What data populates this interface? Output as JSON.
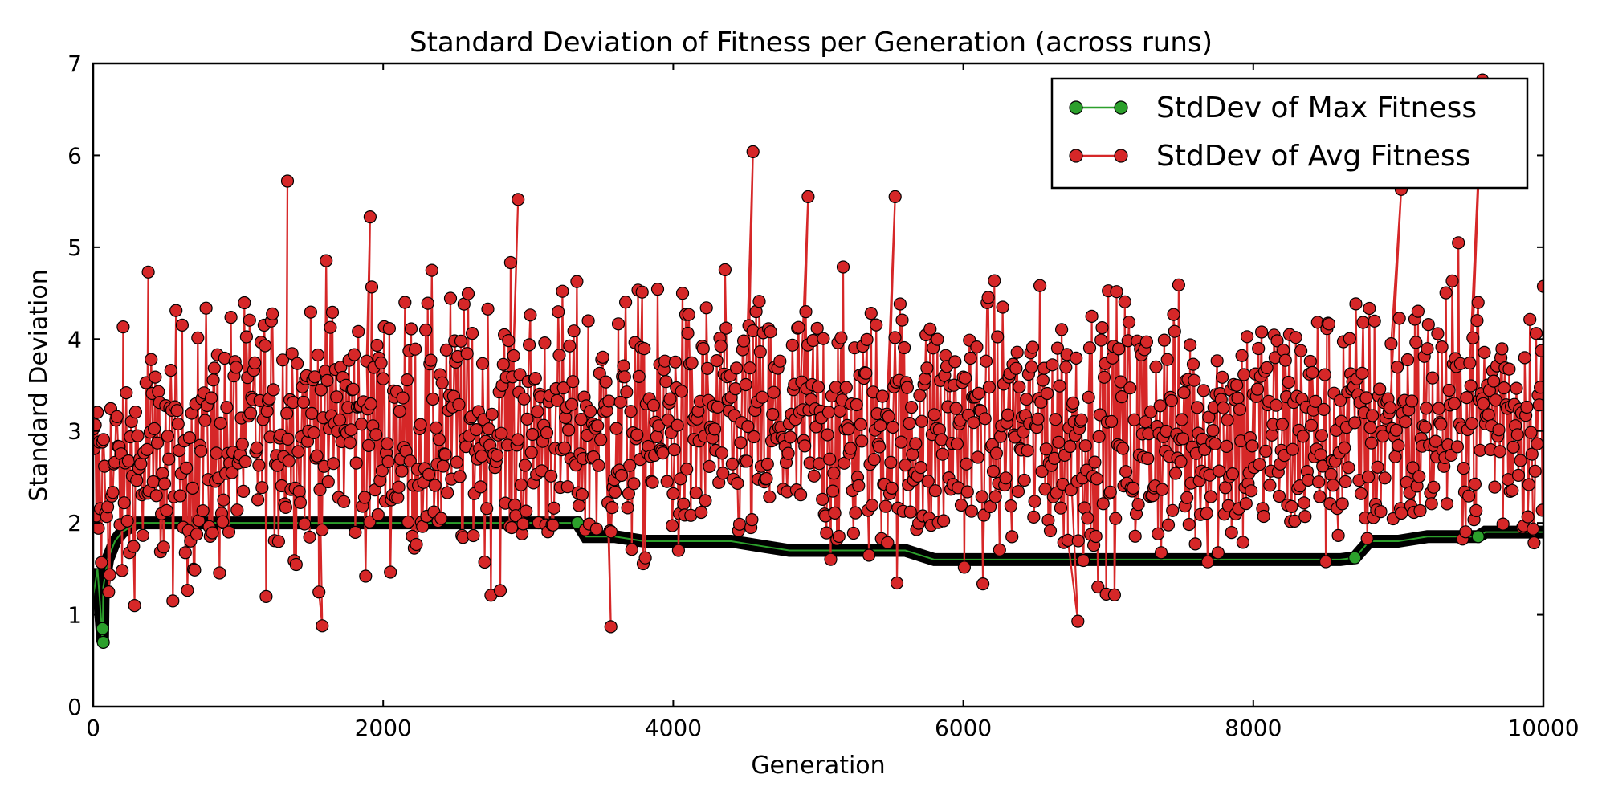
{
  "chart_data": {
    "type": "line",
    "title": "Standard Deviation of Fitness per Generation (across runs)",
    "xlabel": "Generation",
    "ylabel": "Standard Deviation",
    "xlim": [
      0,
      10000
    ],
    "ylim": [
      0,
      7
    ],
    "xticks": [
      0,
      2000,
      4000,
      6000,
      8000,
      10000
    ],
    "yticks": [
      0,
      1,
      2,
      3,
      4,
      5,
      6,
      7
    ],
    "xtick_labels": [
      "0",
      "2000",
      "4000",
      "6000",
      "8000",
      "10000"
    ],
    "ytick_labels": [
      "0",
      "1",
      "2",
      "3",
      "4",
      "5",
      "6",
      "7"
    ],
    "grid": false,
    "legend_position": "top-right",
    "series": [
      {
        "name": "StdDev of Max Fitness",
        "color": "#2ca02c",
        "marker": "circle",
        "x": [
          0,
          30,
          60,
          65,
          70,
          100,
          150,
          200,
          300,
          400,
          600,
          800,
          1000,
          1200,
          1400,
          1600,
          1800,
          2000,
          2200,
          2400,
          2600,
          2800,
          3000,
          3200,
          3300,
          3340,
          3400,
          3600,
          3800,
          4000,
          4200,
          4400,
          4600,
          4800,
          5000,
          5200,
          5400,
          5600,
          5800,
          6000,
          6200,
          6400,
          6600,
          6800,
          7000,
          7200,
          7400,
          7600,
          7800,
          8000,
          8200,
          8400,
          8600,
          8700,
          8800,
          9000,
          9200,
          9400,
          9550,
          9600,
          9800,
          10000
        ],
        "y": [
          1.2,
          1.5,
          0.85,
          0.7,
          1.3,
          1.6,
          1.8,
          1.9,
          2.0,
          2.0,
          2.0,
          2.0,
          2.0,
          2.0,
          2.0,
          2.0,
          2.0,
          2.0,
          2.0,
          2.0,
          2.0,
          2.0,
          2.0,
          2.0,
          2.0,
          2.0,
          1.85,
          1.85,
          1.8,
          1.8,
          1.8,
          1.8,
          1.75,
          1.7,
          1.7,
          1.7,
          1.7,
          1.7,
          1.6,
          1.6,
          1.6,
          1.6,
          1.6,
          1.6,
          1.6,
          1.6,
          1.6,
          1.6,
          1.6,
          1.6,
          1.6,
          1.6,
          1.6,
          1.62,
          1.8,
          1.8,
          1.85,
          1.85,
          1.85,
          1.9,
          1.9,
          1.9
        ]
      },
      {
        "name": "StdDev of Avg Fitness",
        "color": "#d62728",
        "marker": "circle",
        "x": [
          0,
          200,
          400,
          600,
          800,
          1000,
          1200,
          1400,
          1600,
          1800,
          2000,
          2200,
          2400,
          2600,
          2800,
          3000,
          3200,
          3400,
          3600,
          3800,
          4000,
          4200,
          4400,
          4600,
          4800,
          5000,
          5200,
          5400,
          5600,
          5800,
          6000,
          6200,
          6400,
          6600,
          6800,
          7000,
          7200,
          7400,
          7600,
          7800,
          8000,
          8200,
          8400,
          8600,
          8800,
          9000,
          9200,
          9400,
          9600,
          9800,
          10000
        ],
        "y": [
          2.3,
          2.5,
          2.6,
          2.7,
          2.8,
          2.9,
          3.0,
          3.1,
          3.1,
          3.1,
          3.0,
          3.0,
          3.0,
          3.0,
          3.0,
          3.0,
          3.0,
          3.0,
          3.0,
          3.0,
          3.0,
          3.0,
          3.0,
          3.0,
          3.0,
          3.0,
          3.0,
          3.0,
          3.0,
          3.0,
          3.0,
          3.0,
          3.0,
          3.0,
          3.0,
          3.0,
          3.0,
          3.0,
          3.0,
          3.0,
          3.0,
          3.0,
          3.0,
          3.0,
          3.0,
          3.1,
          3.1,
          3.2,
          3.2,
          3.2,
          3.2
        ],
        "spread": 0.95,
        "notable_points": [
          {
            "x": 380,
            "y": 4.73
          },
          {
            "x": 1340,
            "y": 5.72
          },
          {
            "x": 1580,
            "y": 0.88
          },
          {
            "x": 1910,
            "y": 5.33
          },
          {
            "x": 2930,
            "y": 5.52
          },
          {
            "x": 3570,
            "y": 0.87
          },
          {
            "x": 4550,
            "y": 6.04
          },
          {
            "x": 4930,
            "y": 5.55
          },
          {
            "x": 5530,
            "y": 5.55
          },
          {
            "x": 6790,
            "y": 0.93
          },
          {
            "x": 9020,
            "y": 5.63
          },
          {
            "x": 9580,
            "y": 6.82
          }
        ]
      }
    ]
  }
}
